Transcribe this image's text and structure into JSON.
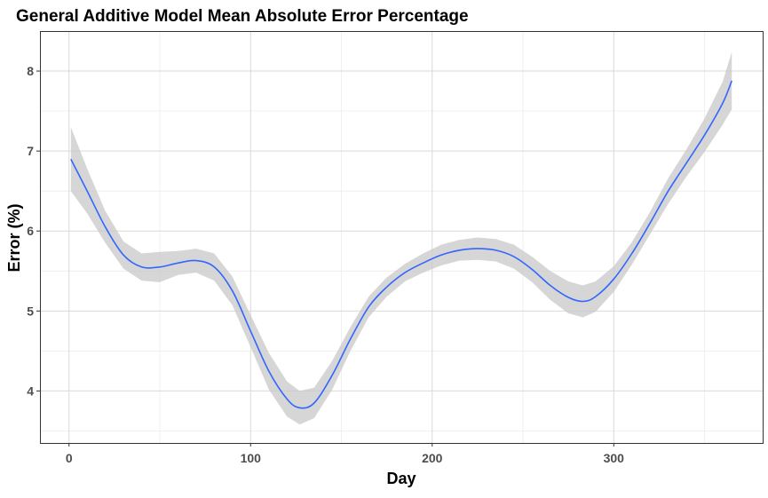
{
  "chart_data": {
    "type": "line",
    "title": "General Additive Model Mean Absolute Error Percentage",
    "xlabel": "Day",
    "ylabel": "Error (%)",
    "xlim": [
      -16,
      382
    ],
    "ylim": [
      3.35,
      8.5
    ],
    "x_ticks": [
      0,
      100,
      200,
      300
    ],
    "y_ticks": [
      4,
      5,
      6,
      7,
      8
    ],
    "grid": true,
    "colors": {
      "line": "#3366ff",
      "band": "#c8c8c8"
    },
    "series": [
      {
        "x": [
          1,
          10,
          20,
          30,
          40,
          50,
          60,
          70,
          80,
          90,
          100,
          110,
          120,
          127,
          135,
          145,
          155,
          165,
          175,
          185,
          195,
          205,
          215,
          225,
          235,
          245,
          255,
          265,
          275,
          283,
          290,
          300,
          310,
          320,
          330,
          340,
          350,
          360,
          365
        ],
        "y": [
          6.9,
          6.5,
          6.05,
          5.7,
          5.55,
          5.55,
          5.6,
          5.63,
          5.55,
          5.25,
          4.75,
          4.25,
          3.9,
          3.79,
          3.85,
          4.2,
          4.65,
          5.05,
          5.3,
          5.48,
          5.6,
          5.7,
          5.76,
          5.78,
          5.76,
          5.68,
          5.52,
          5.32,
          5.17,
          5.12,
          5.18,
          5.4,
          5.72,
          6.1,
          6.5,
          6.85,
          7.2,
          7.6,
          7.88
        ],
        "lower": [
          6.5,
          6.22,
          5.85,
          5.53,
          5.38,
          5.36,
          5.45,
          5.48,
          5.38,
          5.07,
          4.55,
          4.02,
          3.68,
          3.58,
          3.66,
          4.02,
          4.5,
          4.92,
          5.18,
          5.37,
          5.48,
          5.57,
          5.63,
          5.64,
          5.62,
          5.53,
          5.36,
          5.14,
          4.97,
          4.92,
          4.99,
          5.24,
          5.58,
          5.96,
          6.34,
          6.68,
          6.99,
          7.33,
          7.52
        ],
        "upper": [
          7.3,
          6.78,
          6.25,
          5.87,
          5.72,
          5.74,
          5.75,
          5.78,
          5.72,
          5.43,
          4.95,
          4.48,
          4.12,
          4.0,
          4.04,
          4.38,
          4.8,
          5.18,
          5.42,
          5.59,
          5.72,
          5.83,
          5.89,
          5.92,
          5.9,
          5.83,
          5.68,
          5.5,
          5.37,
          5.32,
          5.37,
          5.56,
          5.86,
          6.24,
          6.66,
          7.02,
          7.41,
          7.87,
          8.24
        ]
      }
    ]
  }
}
